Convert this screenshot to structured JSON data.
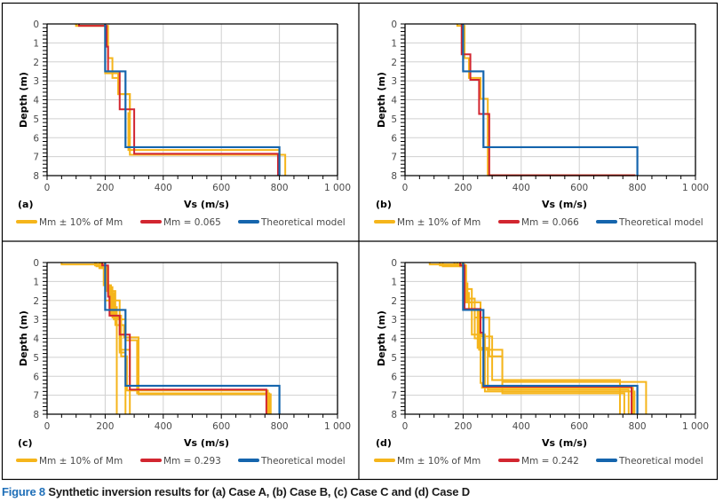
{
  "caption": {
    "label": "Figure 8",
    "text": " Synthetic inversion results for (a) Case A, (b) Case B, (c) Case C and (d) Case D"
  },
  "colors": {
    "range": "#f5b51b",
    "mm": "#d22630",
    "theoretical": "#1565ad",
    "grid": "#d0d0d0",
    "axis": "#000000",
    "tick_label": "#4a4a4a"
  },
  "chart_data": [
    {
      "type": "line",
      "panel": "(a)",
      "xlabel": "Vs (m/s)",
      "ylabel": "Depth (m)",
      "xlim": [
        0,
        1000
      ],
      "ylim": [
        0,
        8
      ],
      "y_inverted": true,
      "grid": true,
      "xticks": [
        0,
        200,
        400,
        600,
        800,
        1000
      ],
      "xtick_labels": [
        "0",
        "200",
        "400",
        "600",
        "800",
        "1 000"
      ],
      "yticks": [
        0,
        1,
        2,
        3,
        4,
        5,
        6,
        7,
        8
      ],
      "legend": [
        "Mm ± 10% of Mm",
        "Mm = 0.065",
        "Theoretical model"
      ],
      "legend_position": "bottom",
      "series": [
        {
          "name": "Mm ± 10% of Mm",
          "role": "range",
          "profiles": [
            [
              [
                100,
                0.1
              ],
              [
                210,
                1.8
              ],
              [
                225,
                2.6
              ],
              [
                245,
                3.7
              ],
              [
                285,
                4.7
              ],
              [
                280,
                6.65
              ],
              [
                800,
                8
              ]
            ],
            [
              [
                100,
                0.1
              ],
              [
                200,
                2.6
              ],
              [
                225,
                2.85
              ],
              [
                245,
                3.7
              ],
              [
                285,
                6.9
              ],
              [
                820,
                8
              ]
            ]
          ]
        },
        {
          "name": "Mm = 0.065",
          "role": "mm",
          "profiles": [
            [
              [
                110,
                0.1
              ],
              [
                205,
                1.2
              ],
              [
                210,
                2.5
              ],
              [
                250,
                4.5
              ],
              [
                300,
                6.85
              ],
              [
                795,
                8
              ]
            ]
          ]
        },
        {
          "name": "Theoretical model",
          "role": "theoretical",
          "profiles": [
            [
              [
                200,
                2.5
              ],
              [
                270,
                6.5
              ],
              [
                800,
                8
              ]
            ]
          ]
        }
      ]
    },
    {
      "type": "line",
      "panel": "(b)",
      "xlabel": "Vs (m/s)",
      "ylabel": "Depth (m)",
      "xlim": [
        0,
        1000
      ],
      "ylim": [
        0,
        8
      ],
      "y_inverted": true,
      "grid": true,
      "xticks": [
        0,
        200,
        400,
        600,
        800,
        1000
      ],
      "xtick_labels": [
        "0",
        "200",
        "400",
        "600",
        "800",
        "1 000"
      ],
      "yticks": [
        0,
        1,
        2,
        3,
        4,
        5,
        6,
        7,
        8
      ],
      "legend": [
        "Mm ± 10% of Mm",
        "Mm = 0.066",
        "Theoretical model"
      ],
      "legend_position": "bottom",
      "series": [
        {
          "name": "Mm ± 10% of Mm",
          "role": "range",
          "profiles": [
            [
              [
                180,
                0.1
              ],
              [
                205,
                1.8
              ],
              [
                220,
                2.85
              ],
              [
                260,
                3.95
              ],
              [
                285,
                7.98
              ],
              [
                790,
                8
              ]
            ]
          ]
        },
        {
          "name": "Mm = 0.066",
          "role": "mm",
          "profiles": [
            [
              [
                195,
                1.6
              ],
              [
                225,
                2.95
              ],
              [
                255,
                4.75
              ],
              [
                290,
                7.98
              ],
              [
                790,
                8
              ]
            ]
          ]
        },
        {
          "name": "Theoretical model",
          "role": "theoretical",
          "profiles": [
            [
              [
                200,
                2.5
              ],
              [
                270,
                6.5
              ],
              [
                800,
                8
              ]
            ]
          ]
        }
      ]
    },
    {
      "type": "line",
      "panel": "(c)",
      "xlabel": "Vs (m/s)",
      "ylabel": "Depth (m)",
      "xlim": [
        0,
        1000
      ],
      "ylim": [
        0,
        8
      ],
      "y_inverted": true,
      "grid": true,
      "xticks": [
        0,
        200,
        400,
        600,
        800,
        1000
      ],
      "xtick_labels": [
        "0",
        "200",
        "400",
        "600",
        "800",
        "1 000"
      ],
      "yticks": [
        0,
        1,
        2,
        3,
        4,
        5,
        6,
        7,
        8
      ],
      "legend": [
        "Mm ± 10% of Mm",
        "Mm = 0.293",
        "Theoretical model"
      ],
      "legend_position": "bottom",
      "series": [
        {
          "name": "Mm ± 10% of Mm",
          "role": "range",
          "profiles": [
            [
              [
                50,
                0.1
              ],
              [
                200,
                1.2
              ],
              [
                215,
                2.35
              ],
              [
                240,
                4.15
              ],
              [
                240,
                8
              ]
            ],
            [
              [
                170,
                0.2
              ],
              [
                210,
                1.3
              ],
              [
                225,
                2.9
              ],
              [
                250,
                4.75
              ],
              [
                270,
                8
              ]
            ],
            [
              [
                180,
                0.3
              ],
              [
                205,
                1.5
              ],
              [
                235,
                3.3
              ],
              [
                265,
                3.95
              ],
              [
                315,
                6.95
              ],
              [
                770,
                8
              ]
            ],
            [
              [
                165,
                0.15
              ],
              [
                195,
                1.2
              ],
              [
                220,
                2.8
              ],
              [
                255,
                4.95
              ],
              [
                275,
                6.75
              ],
              [
                760,
                8
              ]
            ],
            [
              [
                185,
                0.25
              ],
              [
                210,
                1.6
              ],
              [
                230,
                3.0
              ],
              [
                270,
                4.1
              ],
              [
                310,
                6.9
              ],
              [
                765,
                8
              ]
            ],
            [
              [
                190,
                0.2
              ],
              [
                200,
                2.0
              ],
              [
                250,
                4.6
              ],
              [
                285,
                8
              ]
            ]
          ]
        },
        {
          "name": "Mm = 0.293",
          "role": "mm",
          "profiles": [
            [
              [
                190,
                0.15
              ],
              [
                210,
                1.8
              ],
              [
                215,
                2.8
              ],
              [
                250,
                3.8
              ],
              [
                285,
                6.7
              ],
              [
                755,
                8
              ]
            ]
          ]
        },
        {
          "name": "Theoretical model",
          "role": "theoretical",
          "profiles": [
            [
              [
                200,
                2.5
              ],
              [
                270,
                6.5
              ],
              [
                800,
                8
              ]
            ]
          ]
        }
      ]
    },
    {
      "type": "line",
      "panel": "(d)",
      "xlabel": "Vs (m/s)",
      "ylabel": "Depth (m)",
      "xlim": [
        0,
        1000
      ],
      "ylim": [
        0,
        8
      ],
      "y_inverted": true,
      "grid": true,
      "xticks": [
        0,
        200,
        400,
        600,
        800,
        1000
      ],
      "xtick_labels": [
        "0",
        "200",
        "400",
        "600",
        "800",
        "1 000"
      ],
      "yticks": [
        0,
        1,
        2,
        3,
        4,
        5,
        6,
        7,
        8
      ],
      "legend": [
        "Mm ± 10% of Mm",
        "Mm = 0.242",
        "Theoretical model"
      ],
      "legend_position": "bottom",
      "series": [
        {
          "name": "Mm ± 10% of Mm",
          "role": "range",
          "profiles": [
            [
              [
                85,
                0.1
              ],
              [
                205,
                1.1
              ],
              [
                215,
                2.1
              ],
              [
                260,
                3.9
              ],
              [
                300,
                6.2
              ],
              [
                740,
                8
              ]
            ],
            [
              [
                120,
                0.15
              ],
              [
                210,
                1.4
              ],
              [
                230,
                2.5
              ],
              [
                255,
                4.6
              ],
              [
                335,
                6.3
              ],
              [
                830,
                8
              ]
            ],
            [
              [
                130,
                0.2
              ],
              [
                205,
                1.9
              ],
              [
                240,
                2.9
              ],
              [
                290,
                4.95
              ],
              [
                335,
                6.9
              ],
              [
                755,
                8
              ]
            ],
            [
              [
                170,
                0.1
              ],
              [
                200,
                1.6
              ],
              [
                220,
                2.5
              ],
              [
                240,
                4.0
              ],
              [
                260,
                6.35
              ],
              [
                265,
                6.6
              ],
              [
                785,
                8
              ]
            ],
            [
              [
                180,
                0.15
              ],
              [
                210,
                2.1
              ],
              [
                230,
                3.8
              ],
              [
                275,
                6.8
              ],
              [
                790,
                8
              ]
            ],
            [
              [
                190,
                0.2
              ],
              [
                200,
                2.5
              ],
              [
                250,
                4.5
              ],
              [
                285,
                6.7
              ],
              [
                770,
                8
              ]
            ]
          ]
        },
        {
          "name": "Mm = 0.242",
          "role": "mm",
          "profiles": [
            [
              [
                190,
                0.15
              ],
              [
                205,
                2.45
              ],
              [
                260,
                3.7
              ],
              [
                270,
                6.55
              ],
              [
                780,
                8
              ]
            ]
          ]
        },
        {
          "name": "Theoretical model",
          "role": "theoretical",
          "profiles": [
            [
              [
                200,
                2.5
              ],
              [
                270,
                6.5
              ],
              [
                800,
                8
              ]
            ]
          ]
        }
      ]
    }
  ]
}
